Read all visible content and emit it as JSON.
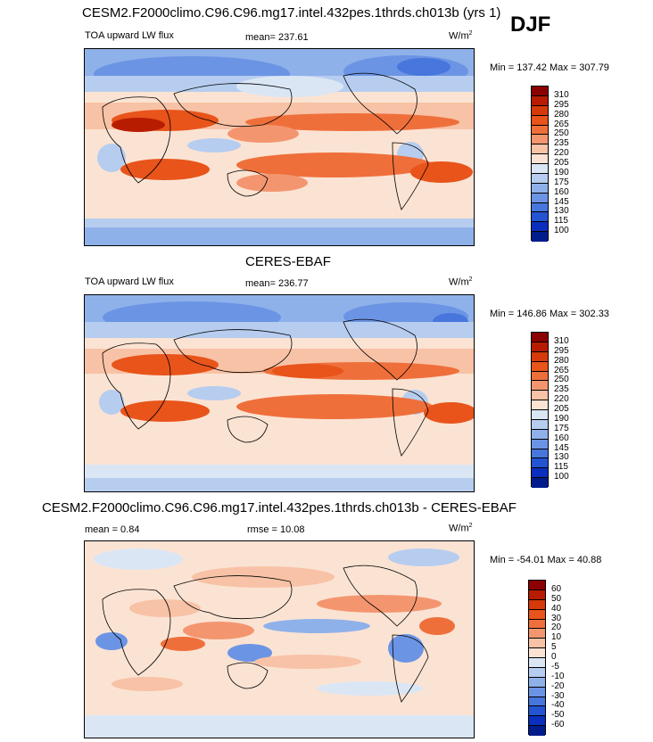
{
  "season": "DJF",
  "panels": [
    {
      "title": "CESM2.F2000climo.C96.C96.mg17.intel.432pes.1thrds.ch013b (yrs 1)",
      "variable": "TOA upward LW flux",
      "mean_label": "mean= 237.61",
      "rmse_label": "",
      "units": "W/m",
      "units_sup": "2",
      "minmax": "Min = 137.42 Max = 307.79",
      "colorbar_labels": [
        "310",
        "295",
        "280",
        "265",
        "250",
        "235",
        "220",
        "205",
        "190",
        "175",
        "160",
        "145",
        "130",
        "115",
        "100"
      ],
      "colorbar_colors": [
        "#8b0000",
        "#b71c00",
        "#d63a0a",
        "#e8541a",
        "#ef6f3b",
        "#f39670",
        "#f8c2a6",
        "#fbe3d3",
        "#dbe6f5",
        "#b6cdef",
        "#8fb1ea",
        "#6c94e4",
        "#4776dc",
        "#2354d2",
        "#0a2fbf",
        "#001c8c"
      ]
    },
    {
      "title": "CERES-EBAF",
      "variable": "TOA upward LW flux",
      "mean_label": "mean= 236.77",
      "rmse_label": "",
      "units": "W/m",
      "units_sup": "2",
      "minmax": "Min = 146.86 Max = 302.33",
      "colorbar_labels": [
        "310",
        "295",
        "280",
        "265",
        "250",
        "235",
        "220",
        "205",
        "190",
        "175",
        "160",
        "145",
        "130",
        "115",
        "100"
      ],
      "colorbar_colors": [
        "#8b0000",
        "#b71c00",
        "#d63a0a",
        "#e8541a",
        "#ef6f3b",
        "#f39670",
        "#f8c2a6",
        "#fbe3d3",
        "#dbe6f5",
        "#b6cdef",
        "#8fb1ea",
        "#6c94e4",
        "#4776dc",
        "#2354d2",
        "#0a2fbf",
        "#001c8c"
      ]
    },
    {
      "title": "CESM2.F2000climo.C96.C96.mg17.intel.432pes.1thrds.ch013b - CERES-EBAF",
      "variable": "",
      "mean_label": "mean =   0.84",
      "rmse_label": "rmse =  10.08",
      "units": "W/m",
      "units_sup": "2",
      "minmax": "Min = -54.01 Max =  40.88",
      "colorbar_labels": [
        "60",
        "50",
        "40",
        "30",
        "20",
        "10",
        "5",
        "0",
        "-5",
        "-10",
        "-20",
        "-30",
        "-40",
        "-50",
        "-60"
      ],
      "colorbar_colors": [
        "#8b0000",
        "#b71c00",
        "#d63a0a",
        "#e8541a",
        "#ef6f3b",
        "#f39670",
        "#f8c2a6",
        "#fbe3d3",
        "#dbe6f5",
        "#b6cdef",
        "#8fb1ea",
        "#6c94e4",
        "#4776dc",
        "#2354d2",
        "#0a2fbf",
        "#001c8c"
      ]
    }
  ],
  "chart_data": [
    {
      "type": "heatmap",
      "title": "CESM2.F2000climo.C96.C96.mg17.intel.432pes.1thrds.ch013b (yrs 1)",
      "variable": "TOA upward LW flux",
      "units": "W/m2",
      "mean": 237.61,
      "min": 137.42,
      "max": 307.79,
      "levels": [
        100,
        115,
        130,
        145,
        160,
        175,
        190,
        205,
        220,
        235,
        250,
        265,
        280,
        295,
        310
      ],
      "season": "DJF"
    },
    {
      "type": "heatmap",
      "title": "CERES-EBAF",
      "variable": "TOA upward LW flux",
      "units": "W/m2",
      "mean": 236.77,
      "min": 146.86,
      "max": 302.33,
      "levels": [
        100,
        115,
        130,
        145,
        160,
        175,
        190,
        205,
        220,
        235,
        250,
        265,
        280,
        295,
        310
      ],
      "season": "DJF"
    },
    {
      "type": "heatmap",
      "title": "CESM2.F2000climo.C96.C96.mg17.intel.432pes.1thrds.ch013b - CERES-EBAF",
      "units": "W/m2",
      "mean": 0.84,
      "rmse": 10.08,
      "min": -54.01,
      "max": 40.88,
      "levels": [
        -60,
        -50,
        -40,
        -30,
        -20,
        -10,
        -5,
        0,
        5,
        10,
        20,
        30,
        40,
        50,
        60
      ],
      "season": "DJF"
    }
  ]
}
